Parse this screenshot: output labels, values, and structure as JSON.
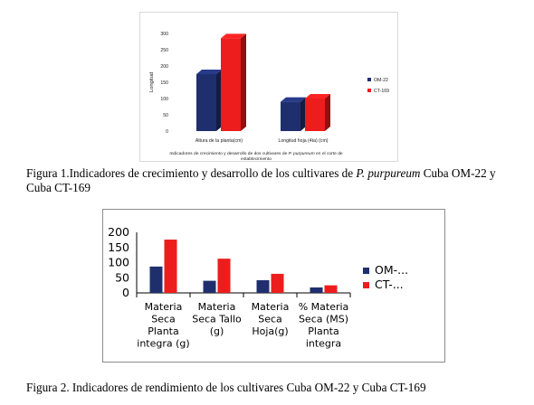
{
  "figure1": {
    "caption_prefix": "Figura 1.Indicadores de crecimiento y desarrollo de los cultivares de ",
    "caption_italic": "P. purpureum",
    "caption_suffix": " Cuba OM-22 y Cuba CT-169",
    "chart_data": {
      "type": "bar",
      "style": "3d",
      "categories": [
        "Altura de la planta(cm)",
        "Longitud hoja (4ta) (cm)"
      ],
      "series": [
        {
          "name": "OM-22",
          "values": [
            175,
            90
          ]
        },
        {
          "name": "CT-169",
          "values": [
            285,
            100
          ]
        }
      ],
      "ylabel": "Longitud",
      "xlabel_parts": [
        "Indicadores de crecimiento y desarrollo de dos cultivares de ",
        "P. purpureum",
        " en el corte de",
        "establecimiento"
      ],
      "ylim": [
        0,
        300
      ],
      "yticks": [
        "300",
        "250",
        "200",
        "150",
        "100",
        "50",
        "0"
      ],
      "legend_position": "right",
      "colors": {
        "OM-22": "#1f2f6e",
        "CT-169": "#ee1d1d"
      }
    }
  },
  "figure2": {
    "caption": "Figura 2. Indicadores de rendimiento de los cultivares Cuba OM-22 y Cuba CT-169",
    "chart_data": {
      "type": "bar",
      "categories": [
        [
          "Materia",
          "Seca",
          "Planta",
          "integra (g)"
        ],
        [
          "Materia",
          "Seca Tallo",
          "(g)"
        ],
        [
          "Materia",
          "Seca",
          "Hoja(g)"
        ],
        [
          "% Materia",
          "Seca (MS)",
          "Planta",
          "integra"
        ]
      ],
      "series": [
        {
          "name": "OM-...",
          "values": [
            87,
            40,
            42,
            18
          ]
        },
        {
          "name": "CT-...",
          "values": [
            176,
            113,
            63,
            25
          ]
        }
      ],
      "ylim": [
        0,
        200
      ],
      "yticks": [
        "200",
        "150",
        "100",
        "50",
        "0"
      ],
      "legend_position": "right",
      "colors": {
        "OM-...": "#1f2f6e",
        "CT-...": "#ee1d1d"
      }
    }
  }
}
